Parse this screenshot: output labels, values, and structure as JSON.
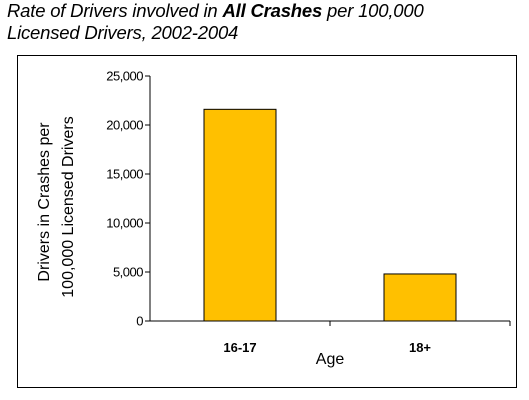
{
  "title": {
    "part1": "Rate of Drivers involved in ",
    "bold": "All Crashes",
    "part2": " per  100,000",
    "line2": "Licensed Drivers, 2002-2004"
  },
  "chart_data": {
    "type": "bar",
    "categories": [
      "16-17",
      "18+"
    ],
    "values": [
      21600,
      4800
    ],
    "xlabel": "Age",
    "ylabel_line1": "Drivers in Crashes per",
    "ylabel_line2": "100,000 Licensed Drivers",
    "ylim": [
      0,
      25000
    ],
    "yticks": [
      0,
      5000,
      10000,
      15000,
      20000,
      25000
    ],
    "ytick_labels": [
      "0",
      "5,000",
      "10,000",
      "15,000",
      "20,000",
      "25,000"
    ],
    "grid": false,
    "legend": "none",
    "bar_color": "#FFC000"
  }
}
